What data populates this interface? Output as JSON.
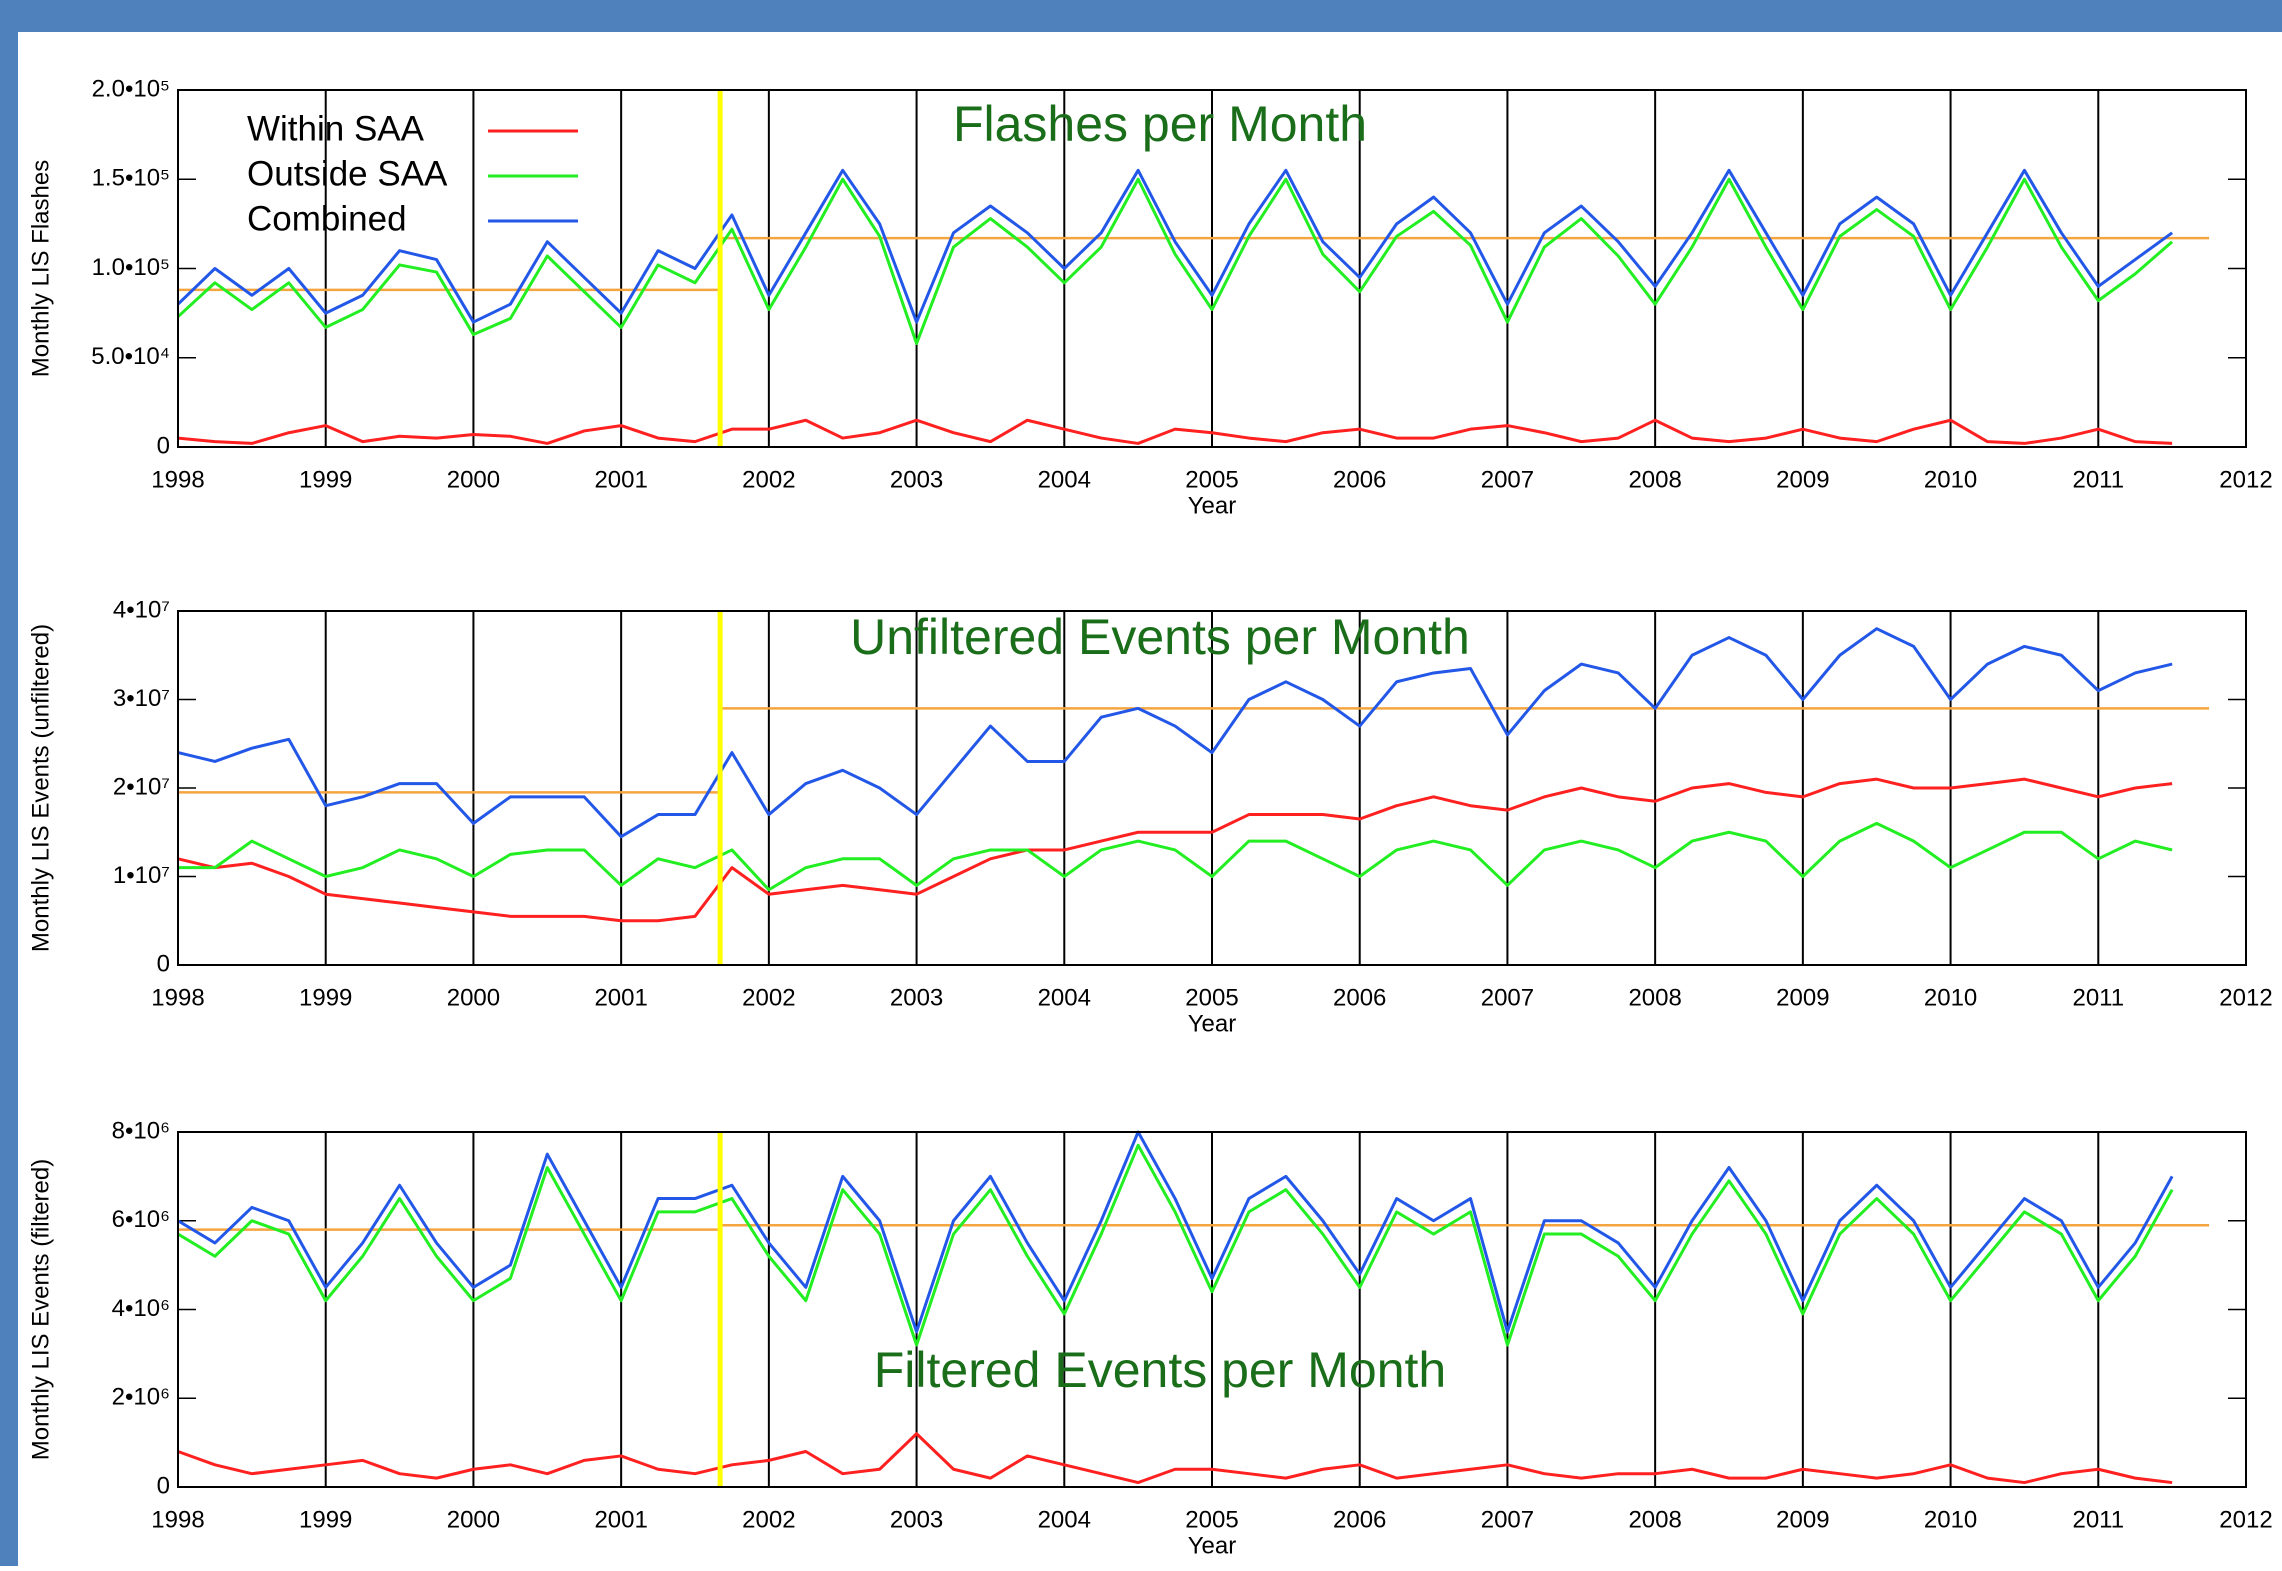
{
  "chart_data": [
    {
      "type": "line",
      "title": "Flashes per Month",
      "xlabel": "Year",
      "ylabel": "Monthly LIS Flashes",
      "x": [
        1998,
        1998.25,
        1998.5,
        1998.75,
        1999,
        1999.25,
        1999.5,
        1999.75,
        2000,
        2000.25,
        2000.5,
        2000.75,
        2001,
        2001.25,
        2001.5,
        2001.75,
        2002,
        2002.25,
        2002.5,
        2002.75,
        2003,
        2003.25,
        2003.5,
        2003.75,
        2004,
        2004.25,
        2004.5,
        2004.75,
        2005,
        2005.25,
        2005.5,
        2005.75,
        2006,
        2006.25,
        2006.5,
        2006.75,
        2007,
        2007.25,
        2007.5,
        2007.75,
        2008,
        2008.25,
        2008.5,
        2008.75,
        2009,
        2009.25,
        2009.5,
        2009.75,
        2010,
        2010.25,
        2010.5,
        2010.75,
        2011,
        2011.25,
        2011.5
      ],
      "series": [
        {
          "name": "Within SAA",
          "color": "#ff2020",
          "values": [
            5000,
            3000,
            2000,
            8000,
            12000,
            3000,
            6000,
            5000,
            7000,
            6000,
            2000,
            9000,
            12000,
            5000,
            3000,
            10000,
            10000,
            15000,
            5000,
            8000,
            15000,
            8000,
            3000,
            15000,
            10000,
            5000,
            2000,
            10000,
            8000,
            5000,
            3000,
            8000,
            10000,
            5000,
            5000,
            10000,
            12000,
            8000,
            3000,
            5000,
            15000,
            5000,
            3000,
            5000,
            10000,
            5000,
            3000,
            10000,
            15000,
            3000,
            2000,
            5000,
            10000,
            3000,
            2000
          ]
        },
        {
          "name": "Outside SAA",
          "color": "#22ee22",
          "values": [
            73000,
            92000,
            77000,
            92000,
            67000,
            77000,
            102000,
            98000,
            63000,
            72000,
            107000,
            87000,
            67000,
            102000,
            92000,
            122000,
            77000,
            112000,
            150000,
            118000,
            58000,
            112000,
            128000,
            112000,
            92000,
            112000,
            150000,
            108000,
            77000,
            118000,
            150000,
            108000,
            87000,
            118000,
            132000,
            113000,
            70000,
            112000,
            128000,
            107000,
            80000,
            112000,
            150000,
            112000,
            77000,
            118000,
            133000,
            118000,
            77000,
            112000,
            150000,
            112000,
            82000,
            97000,
            115000
          ]
        },
        {
          "name": "Combined",
          "color": "#2257e8",
          "values": [
            80000,
            100000,
            85000,
            100000,
            75000,
            85000,
            110000,
            105000,
            70000,
            80000,
            115000,
            95000,
            75000,
            110000,
            100000,
            130000,
            85000,
            120000,
            155000,
            125000,
            70000,
            120000,
            135000,
            120000,
            100000,
            120000,
            155000,
            115000,
            85000,
            125000,
            155000,
            115000,
            95000,
            125000,
            140000,
            120000,
            80000,
            120000,
            135000,
            115000,
            90000,
            120000,
            155000,
            120000,
            85000,
            125000,
            140000,
            125000,
            85000,
            120000,
            155000,
            120000,
            90000,
            105000,
            120000
          ]
        }
      ],
      "xlim": [
        1998,
        2012
      ],
      "xticks": [
        1998,
        1999,
        2000,
        2001,
        2002,
        2003,
        2004,
        2005,
        2006,
        2007,
        2008,
        2009,
        2010,
        2011,
        2012
      ],
      "ylim": [
        0,
        200000
      ],
      "yticks": [
        0,
        {
          "value": 50000,
          "label": "5.0•10⁴"
        },
        {
          "value": 100000,
          "label": "1.0•10⁵"
        },
        {
          "value": 150000,
          "label": "1.5•10⁵"
        },
        {
          "value": 200000,
          "label": "2.0•10⁵"
        }
      ],
      "grid": true,
      "legend": "upper left",
      "reference_lines": [
        {
          "x": [
            1998,
            2001.67
          ],
          "y": 88000,
          "color": "#f5a540"
        },
        {
          "x": [
            2001.67,
            2011.75
          ],
          "y": 117000,
          "color": "#f5a540"
        }
      ],
      "marker_line": {
        "x": 2001.67,
        "color": "#ffff00"
      }
    },
    {
      "type": "line",
      "title": "Unfiltered Events per Month",
      "xlabel": "Year",
      "ylabel": "Monthly LIS Events (unfiltered)",
      "x": [
        1998,
        1998.25,
        1998.5,
        1998.75,
        1999,
        1999.25,
        1999.5,
        1999.75,
        2000,
        2000.25,
        2000.5,
        2000.75,
        2001,
        2001.25,
        2001.5,
        2001.75,
        2002,
        2002.25,
        2002.5,
        2002.75,
        2003,
        2003.25,
        2003.5,
        2003.75,
        2004,
        2004.25,
        2004.5,
        2004.75,
        2005,
        2005.25,
        2005.5,
        2005.75,
        2006,
        2006.25,
        2006.5,
        2006.75,
        2007,
        2007.25,
        2007.5,
        2007.75,
        2008,
        2008.25,
        2008.5,
        2008.75,
        2009,
        2009.25,
        2009.5,
        2009.75,
        2010,
        2010.25,
        2010.5,
        2010.75,
        2011,
        2011.25,
        2011.5
      ],
      "series": [
        {
          "color": "#ff2020",
          "values": [
            12000000,
            11000000,
            11500000,
            10000000,
            8000000,
            7500000,
            7000000,
            6500000,
            6000000,
            5500000,
            5500000,
            5500000,
            5000000,
            5000000,
            5500000,
            11000000,
            8000000,
            8500000,
            9000000,
            8500000,
            8000000,
            10000000,
            12000000,
            13000000,
            13000000,
            14000000,
            15000000,
            15000000,
            15000000,
            17000000,
            17000000,
            17000000,
            16500000,
            18000000,
            19000000,
            18000000,
            17500000,
            19000000,
            20000000,
            19000000,
            18500000,
            20000000,
            20500000,
            19500000,
            19000000,
            20500000,
            21000000,
            20000000,
            20000000,
            20500000,
            21000000,
            20000000,
            19000000,
            20000000,
            20500000
          ]
        },
        {
          "color": "#22ee22",
          "values": [
            11000000,
            11000000,
            14000000,
            12000000,
            10000000,
            11000000,
            13000000,
            12000000,
            10000000,
            12500000,
            13000000,
            13000000,
            9000000,
            12000000,
            11000000,
            13000000,
            8500000,
            11000000,
            12000000,
            12000000,
            9000000,
            12000000,
            13000000,
            13000000,
            10000000,
            13000000,
            14000000,
            13000000,
            10000000,
            14000000,
            14000000,
            12000000,
            10000000,
            13000000,
            14000000,
            13000000,
            9000000,
            13000000,
            14000000,
            13000000,
            11000000,
            14000000,
            15000000,
            14000000,
            10000000,
            14000000,
            16000000,
            14000000,
            11000000,
            13000000,
            15000000,
            15000000,
            12000000,
            14000000,
            13000000
          ]
        },
        {
          "color": "#2257e8",
          "values": [
            24000000,
            23000000,
            24500000,
            25500000,
            18000000,
            19000000,
            20500000,
            20500000,
            16000000,
            19000000,
            19000000,
            19000000,
            14500000,
            17000000,
            17000000,
            24000000,
            17000000,
            20500000,
            22000000,
            20000000,
            17000000,
            22000000,
            27000000,
            23000000,
            23000000,
            28000000,
            29000000,
            27000000,
            24000000,
            30000000,
            32000000,
            30000000,
            27000000,
            32000000,
            33000000,
            33500000,
            26000000,
            31000000,
            34000000,
            33000000,
            29000000,
            35000000,
            37000000,
            35000000,
            30000000,
            35000000,
            38000000,
            36000000,
            30000000,
            34000000,
            36000000,
            35000000,
            31000000,
            33000000,
            34000000
          ]
        }
      ],
      "xlim": [
        1998,
        2012
      ],
      "xticks": [
        1998,
        1999,
        2000,
        2001,
        2002,
        2003,
        2004,
        2005,
        2006,
        2007,
        2008,
        2009,
        2010,
        2011,
        2012
      ],
      "ylim": [
        0,
        40000000
      ],
      "yticks": [
        0,
        {
          "value": 10000000,
          "label": "1•10⁷"
        },
        {
          "value": 20000000,
          "label": "2•10⁷"
        },
        {
          "value": 30000000,
          "label": "3•10⁷"
        },
        {
          "value": 40000000,
          "label": "4•10⁷"
        }
      ],
      "grid": true,
      "reference_lines": [
        {
          "x": [
            1998,
            2001.67
          ],
          "y": 19500000,
          "color": "#f5a540"
        },
        {
          "x": [
            2001.67,
            2011.75
          ],
          "y": 29000000,
          "color": "#f5a540"
        }
      ],
      "marker_line": {
        "x": 2001.67,
        "color": "#ffff00"
      }
    },
    {
      "type": "line",
      "title": "Filtered Events per Month",
      "xlabel": "Year",
      "ylabel": "Monthly LIS Events (filtered)",
      "x": [
        1998,
        1998.25,
        1998.5,
        1998.75,
        1999,
        1999.25,
        1999.5,
        1999.75,
        2000,
        2000.25,
        2000.5,
        2000.75,
        2001,
        2001.25,
        2001.5,
        2001.75,
        2002,
        2002.25,
        2002.5,
        2002.75,
        2003,
        2003.25,
        2003.5,
        2003.75,
        2004,
        2004.25,
        2004.5,
        2004.75,
        2005,
        2005.25,
        2005.5,
        2005.75,
        2006,
        2006.25,
        2006.5,
        2006.75,
        2007,
        2007.25,
        2007.5,
        2007.75,
        2008,
        2008.25,
        2008.5,
        2008.75,
        2009,
        2009.25,
        2009.5,
        2009.75,
        2010,
        2010.25,
        2010.5,
        2010.75,
        2011,
        2011.25,
        2011.5
      ],
      "series": [
        {
          "color": "#ff2020",
          "values": [
            800000,
            500000,
            300000,
            400000,
            500000,
            600000,
            300000,
            200000,
            400000,
            500000,
            300000,
            600000,
            700000,
            400000,
            300000,
            500000,
            600000,
            800000,
            300000,
            400000,
            1200000,
            400000,
            200000,
            700000,
            500000,
            300000,
            100000,
            400000,
            400000,
            300000,
            200000,
            400000,
            500000,
            200000,
            300000,
            400000,
            500000,
            300000,
            200000,
            300000,
            300000,
            400000,
            200000,
            200000,
            400000,
            300000,
            200000,
            300000,
            500000,
            200000,
            100000,
            300000,
            400000,
            200000,
            100000
          ]
        },
        {
          "color": "#22ee22",
          "values": [
            5700000,
            5200000,
            6000000,
            5700000,
            4200000,
            5200000,
            6500000,
            5200000,
            4200000,
            4700000,
            7200000,
            5700000,
            4200000,
            6200000,
            6200000,
            6500000,
            5200000,
            4200000,
            6700000,
            5700000,
            3200000,
            5700000,
            6700000,
            5200000,
            3900000,
            5700000,
            7700000,
            6200000,
            4400000,
            6200000,
            6700000,
            5700000,
            4500000,
            6200000,
            5700000,
            6200000,
            3200000,
            5700000,
            5700000,
            5200000,
            4200000,
            5700000,
            6900000,
            5700000,
            3900000,
            5700000,
            6500000,
            5700000,
            4200000,
            5200000,
            6200000,
            5700000,
            4200000,
            5200000,
            6700000
          ]
        },
        {
          "color": "#2257e8",
          "values": [
            6000000,
            5500000,
            6300000,
            6000000,
            4500000,
            5500000,
            6800000,
            5500000,
            4500000,
            5000000,
            7500000,
            6000000,
            4500000,
            6500000,
            6500000,
            6800000,
            5500000,
            4500000,
            7000000,
            6000000,
            3500000,
            6000000,
            7000000,
            5500000,
            4200000,
            6000000,
            8000000,
            6500000,
            4700000,
            6500000,
            7000000,
            6000000,
            4800000,
            6500000,
            6000000,
            6500000,
            3500000,
            6000000,
            6000000,
            5500000,
            4500000,
            6000000,
            7200000,
            6000000,
            4200000,
            6000000,
            6800000,
            6000000,
            4500000,
            5500000,
            6500000,
            6000000,
            4500000,
            5500000,
            7000000
          ]
        }
      ],
      "xlim": [
        1998,
        2012
      ],
      "xticks": [
        1998,
        1999,
        2000,
        2001,
        2002,
        2003,
        2004,
        2005,
        2006,
        2007,
        2008,
        2009,
        2010,
        2011,
        2012
      ],
      "ylim": [
        0,
        8000000
      ],
      "yticks": [
        0,
        {
          "value": 2000000,
          "label": "2•10⁶"
        },
        {
          "value": 4000000,
          "label": "4•10⁶"
        },
        {
          "value": 6000000,
          "label": "6•10⁶"
        },
        {
          "value": 8000000,
          "label": "8•10⁶"
        }
      ],
      "grid": true,
      "reference_lines": [
        {
          "x": [
            1998,
            2001.67
          ],
          "y": 5800000,
          "color": "#f5a540"
        },
        {
          "x": [
            2001.67,
            2011.75
          ],
          "y": 5900000,
          "color": "#f5a540"
        }
      ],
      "marker_line": {
        "x": 2001.67,
        "color": "#ffff00"
      }
    }
  ]
}
